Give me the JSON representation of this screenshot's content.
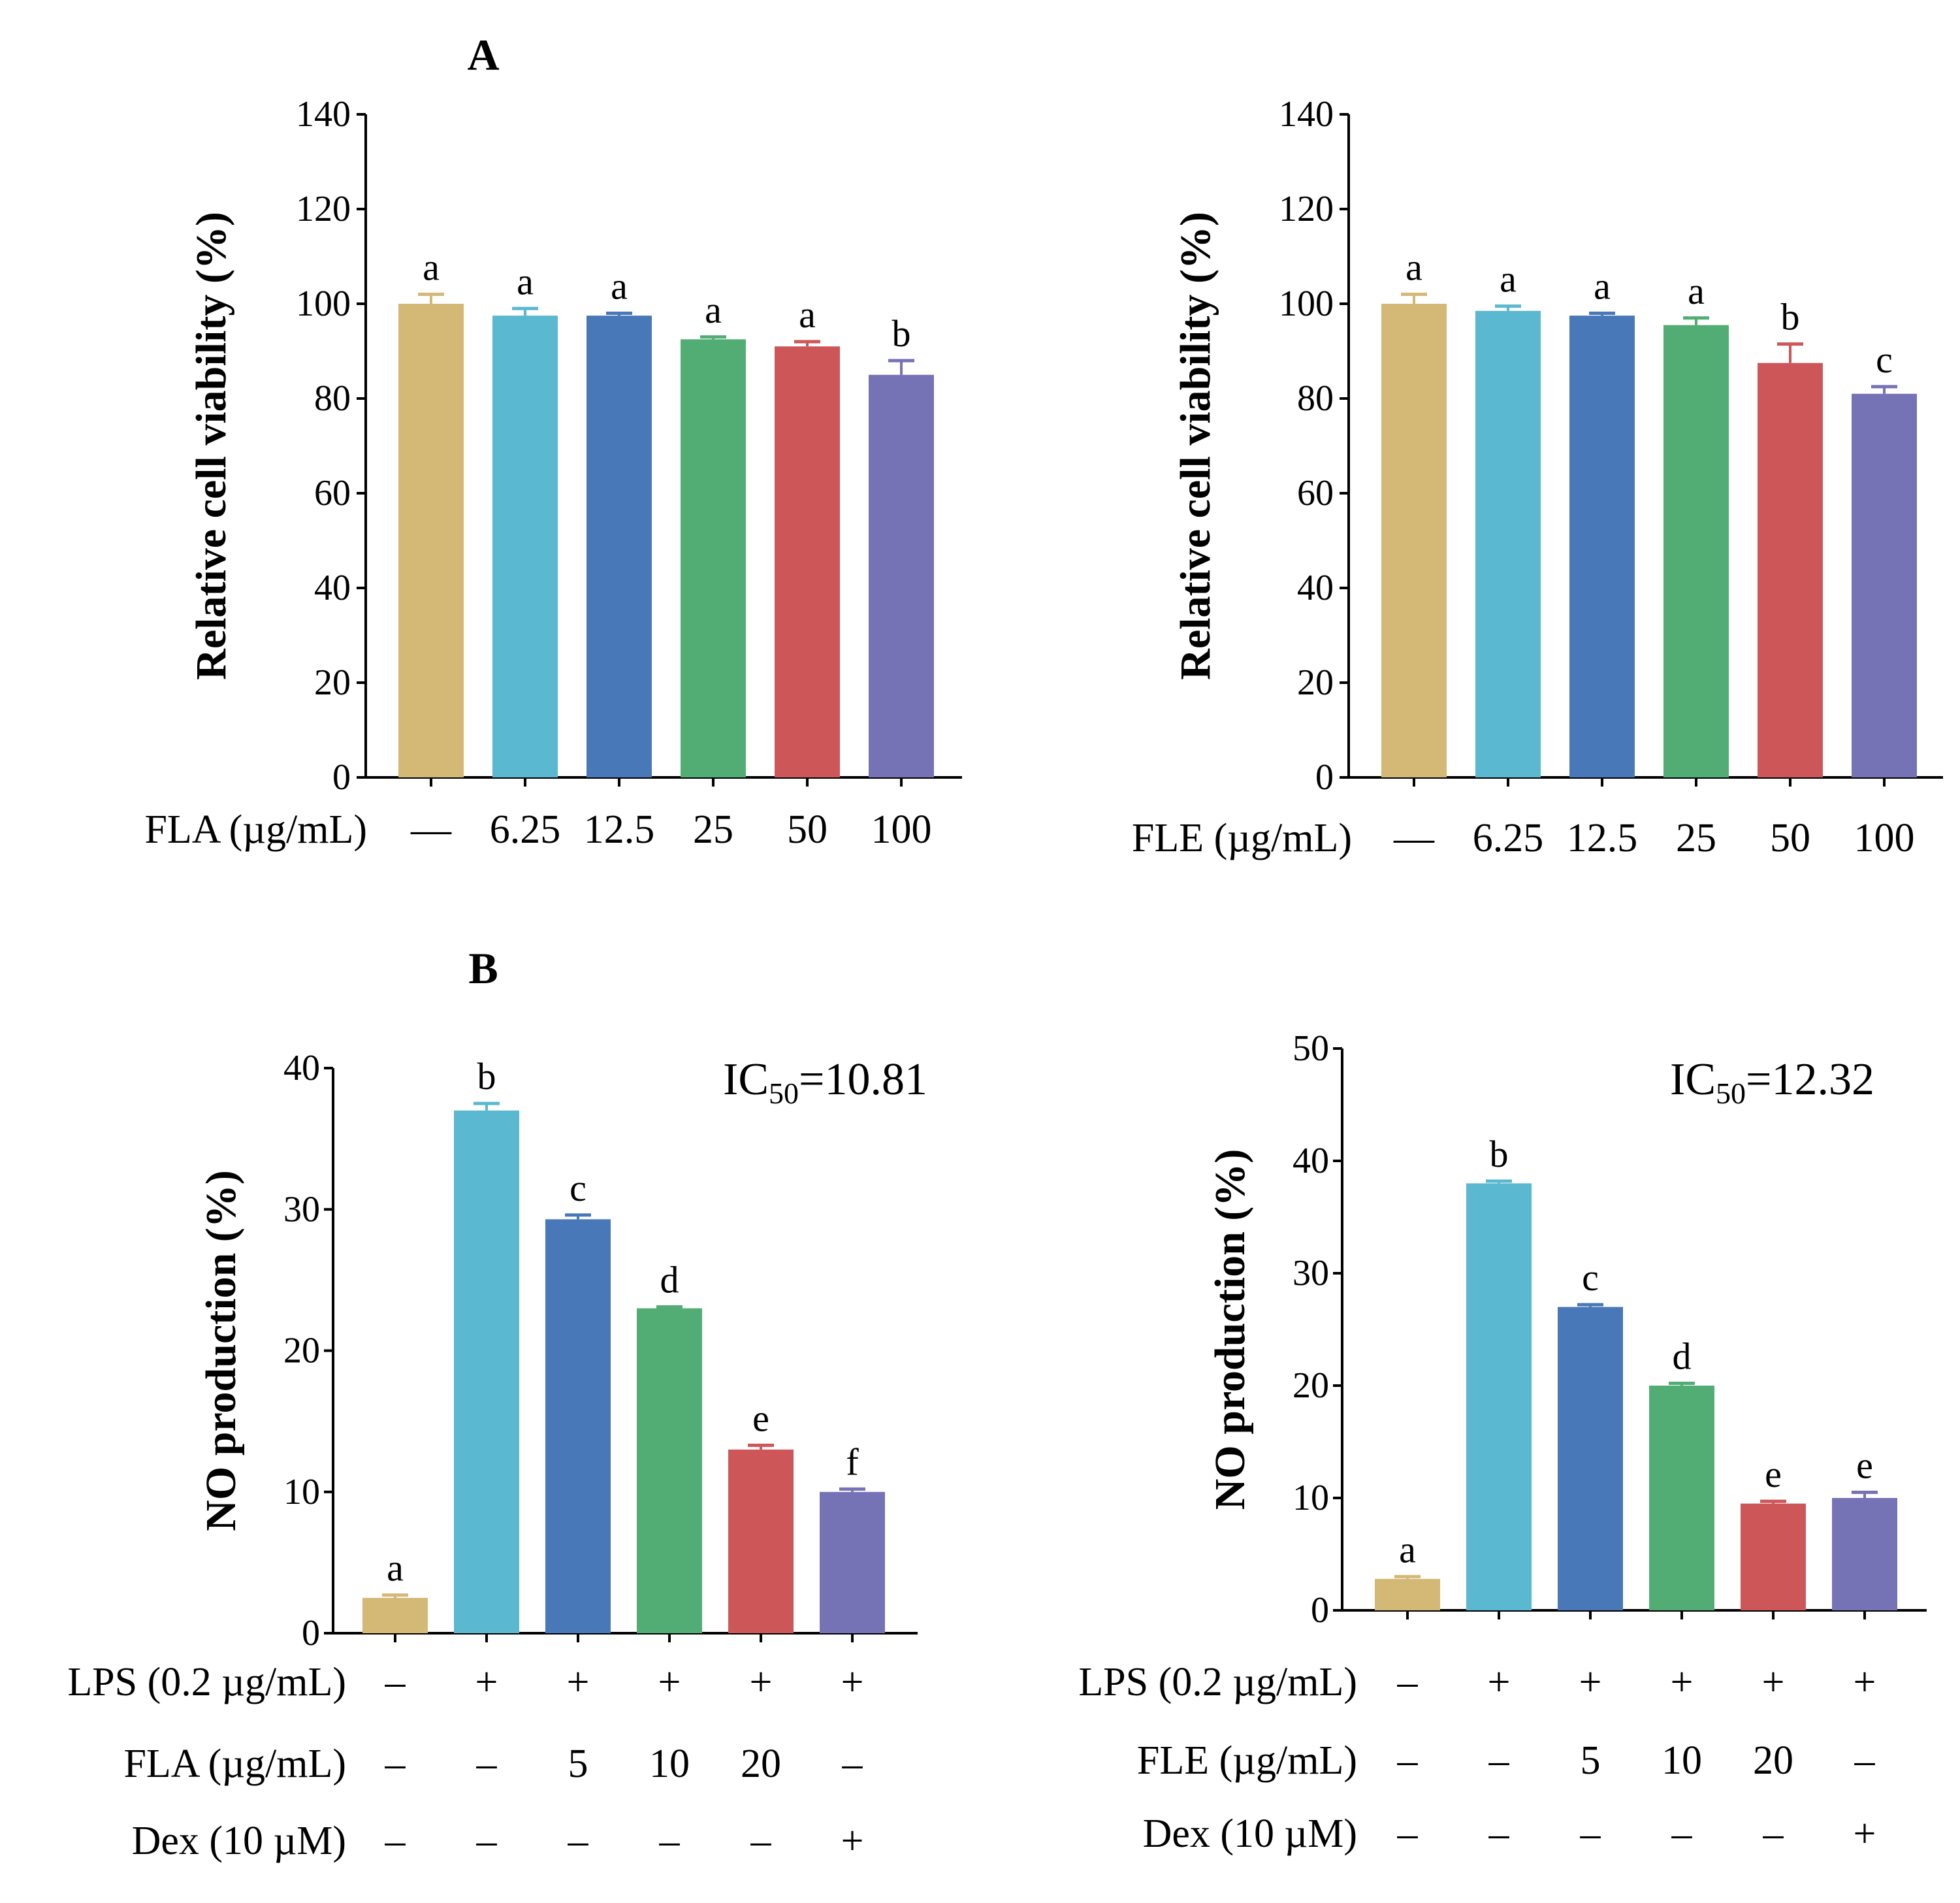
{
  "panel_labels": [
    "A",
    "B"
  ],
  "chart_data": [
    {
      "type": "bar",
      "ylabel": "Relative cell viability (%)",
      "ylim": [
        0,
        140
      ],
      "yticks": [
        0,
        20,
        40,
        60,
        80,
        100,
        120,
        140
      ],
      "row_labels": [
        "FLA (µg/mL)"
      ],
      "rows": [
        [
          "—",
          "6.25",
          "12.5",
          "25",
          "50",
          "100"
        ]
      ],
      "values": [
        100,
        97.5,
        97.5,
        92.5,
        91,
        85
      ],
      "errors": [
        2,
        1.5,
        0.5,
        0.5,
        1,
        3
      ],
      "significance": [
        "a",
        "a",
        "a",
        "a",
        "a",
        "b"
      ],
      "colors": [
        "#d4b876",
        "#5ab8d0",
        "#4878b8",
        "#52ad74",
        "#cc5658",
        "#7672b6"
      ],
      "annotation": null
    },
    {
      "type": "bar",
      "ylabel": "Relative cell viability (%)",
      "ylim": [
        0,
        140
      ],
      "yticks": [
        0,
        20,
        40,
        60,
        80,
        100,
        120,
        140
      ],
      "row_labels": [
        "FLE (µg/mL)"
      ],
      "rows": [
        [
          "—",
          "6.25",
          "12.5",
          "25",
          "50",
          "100"
        ]
      ],
      "values": [
        100,
        98.5,
        97.5,
        95.5,
        87.5,
        81
      ],
      "errors": [
        2,
        1,
        0.5,
        1.5,
        4,
        1.5
      ],
      "significance": [
        "a",
        "a",
        "a",
        "a",
        "b",
        "c"
      ],
      "colors": [
        "#d4b876",
        "#5ab8d0",
        "#4878b8",
        "#52ad74",
        "#cc5658",
        "#7672b6"
      ],
      "annotation": null
    },
    {
      "type": "bar",
      "ylabel": "NO production (%)",
      "ylim": [
        0,
        40
      ],
      "yticks": [
        0,
        10,
        20,
        30,
        40
      ],
      "row_labels": [
        "LPS (0.2 µg/mL)",
        "FLA (µg/mL)",
        "Dex (10 µM)"
      ],
      "rows": [
        [
          "–",
          "+",
          "+",
          "+",
          "+",
          "+"
        ],
        [
          "–",
          "–",
          "5",
          "10",
          "20",
          "–"
        ],
        [
          "–",
          "–",
          "–",
          "–",
          "–",
          "+"
        ]
      ],
      "values": [
        2.5,
        37,
        29.3,
        23,
        13,
        10
      ],
      "errors": [
        0.2,
        0.5,
        0.3,
        0.1,
        0.3,
        0.2
      ],
      "significance": [
        "a",
        "b",
        "c",
        "d",
        "e",
        "f"
      ],
      "colors": [
        "#d4b876",
        "#5ab8d0",
        "#4878b8",
        "#52ad74",
        "#cc5658",
        "#7672b6"
      ],
      "annotation": {
        "prefix": "IC",
        "sub": "50",
        "value": "=10.81"
      }
    },
    {
      "type": "bar",
      "ylabel": "NO production (%)",
      "ylim": [
        0,
        50
      ],
      "yticks": [
        0,
        10,
        20,
        30,
        40,
        50
      ],
      "row_labels": [
        "LPS (0.2 µg/mL)",
        "FLE (µg/mL)",
        "Dex (10 µM)"
      ],
      "rows": [
        [
          "–",
          "+",
          "+",
          "+",
          "+",
          "+"
        ],
        [
          "–",
          "–",
          "5",
          "10",
          "20",
          "–"
        ],
        [
          "–",
          "–",
          "–",
          "–",
          "–",
          "+"
        ]
      ],
      "values": [
        2.8,
        38,
        27,
        20,
        9.5,
        10
      ],
      "errors": [
        0.2,
        0.2,
        0.2,
        0.2,
        0.2,
        0.5
      ],
      "significance": [
        "a",
        "b",
        "c",
        "d",
        "e",
        "e"
      ],
      "colors": [
        "#d4b876",
        "#5ab8d0",
        "#4878b8",
        "#52ad74",
        "#cc5658",
        "#7672b6"
      ],
      "annotation": {
        "prefix": "IC",
        "sub": "50",
        "value": "=12.32"
      }
    }
  ]
}
